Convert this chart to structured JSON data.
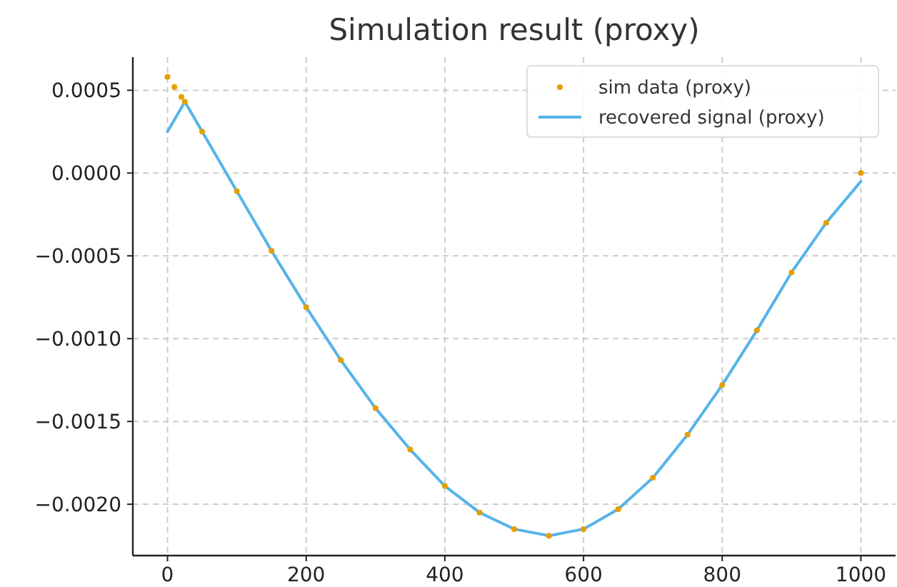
{
  "chart_data": {
    "type": "line",
    "title": "Simulation result (proxy)",
    "xlim": [
      -50,
      1050
    ],
    "ylim": [
      -0.00231,
      0.0007
    ],
    "xticks": [
      0,
      200,
      400,
      600,
      800,
      1000
    ],
    "yticks": [
      {
        "value": 0.0005,
        "label": "0.0005"
      },
      {
        "value": 0,
        "label": "0.0000"
      },
      {
        "value": -0.0005,
        "label": "−0.0005"
      },
      {
        "value": -0.001,
        "label": "−0.0010"
      },
      {
        "value": -0.0015,
        "label": "−0.0015"
      },
      {
        "value": -0.002,
        "label": "−0.0020"
      }
    ],
    "grid": true,
    "legend": "top right",
    "series": [
      {
        "name": "sim data (proxy)",
        "type": "scatter",
        "marker": "circle",
        "color": "#e69f00",
        "x": [
          0,
          10,
          20,
          25,
          50,
          100,
          150,
          200,
          250,
          300,
          350,
          400,
          450,
          500,
          550,
          600,
          650,
          700,
          750,
          800,
          850,
          900,
          950,
          1000
        ],
        "values": [
          0.00058,
          0.00052,
          0.00046,
          0.00043,
          0.00025,
          -0.00011,
          -0.00047,
          -0.00081,
          -0.00113,
          -0.00142,
          -0.00167,
          -0.00189,
          -0.00205,
          -0.00215,
          -0.00219,
          -0.00215,
          -0.00203,
          -0.00184,
          -0.00158,
          -0.00128,
          -0.00095,
          -0.0006,
          -0.0003,
          0
        ]
      },
      {
        "name": "recovered signal (proxy)",
        "marker": "none",
        "line_style": "solid",
        "color": "#56b4e9",
        "x": [
          0,
          25,
          50,
          100,
          150,
          200,
          250,
          300,
          350,
          400,
          450,
          500,
          550,
          600,
          650,
          700,
          750,
          800,
          850,
          900,
          950,
          1000
        ],
        "values": [
          0.00025,
          0.00043,
          0.00025,
          -0.00011,
          -0.00047,
          -0.00081,
          -0.00113,
          -0.00142,
          -0.00167,
          -0.00189,
          -0.00205,
          -0.00215,
          -0.00219,
          -0.00215,
          -0.00203,
          -0.00184,
          -0.00158,
          -0.00128,
          -0.00095,
          -0.0006,
          -0.0003,
          -5e-05
        ]
      }
    ]
  }
}
